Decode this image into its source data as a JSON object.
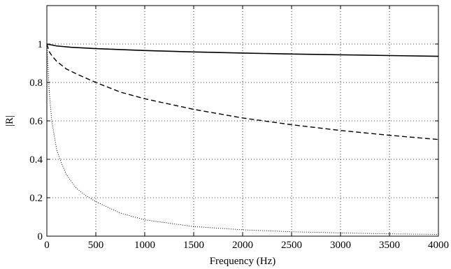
{
  "chart_data": {
    "type": "line",
    "title": "",
    "xlabel": "Frequency (Hz)",
    "ylabel": "|R|",
    "xlim": [
      0,
      4000
    ],
    "ylim": [
      0,
      1.2
    ],
    "xticks": [
      0,
      500,
      1000,
      1500,
      2000,
      2500,
      3000,
      3500,
      4000
    ],
    "yticks": [
      0,
      0.2,
      0.4,
      0.6,
      0.8,
      1
    ],
    "grid": true,
    "legend": "none",
    "series": [
      {
        "style": "solid",
        "x": [
          0,
          50,
          100,
          250,
          500,
          1000,
          1500,
          2000,
          2500,
          3000,
          3500,
          4000
        ],
        "y": [
          1.0,
          0.995,
          0.99,
          0.983,
          0.976,
          0.966,
          0.959,
          0.953,
          0.948,
          0.944,
          0.94,
          0.936
        ]
      },
      {
        "style": "dashed",
        "x": [
          0,
          25,
          50,
          100,
          200,
          300,
          500,
          750,
          1000,
          1500,
          2000,
          2500,
          3000,
          3500,
          4000
        ],
        "y": [
          1.0,
          0.96,
          0.94,
          0.91,
          0.87,
          0.845,
          0.8,
          0.75,
          0.715,
          0.66,
          0.615,
          0.58,
          0.55,
          0.525,
          0.503
        ]
      },
      {
        "style": "dotted",
        "x": [
          0,
          25,
          50,
          100,
          150,
          200,
          300,
          400,
          500,
          750,
          1000,
          1500,
          2000,
          2500,
          3000,
          3500,
          4000
        ],
        "y": [
          1.0,
          0.75,
          0.6,
          0.45,
          0.38,
          0.32,
          0.25,
          0.21,
          0.18,
          0.12,
          0.085,
          0.05,
          0.033,
          0.023,
          0.017,
          0.012,
          0.009
        ]
      }
    ]
  }
}
